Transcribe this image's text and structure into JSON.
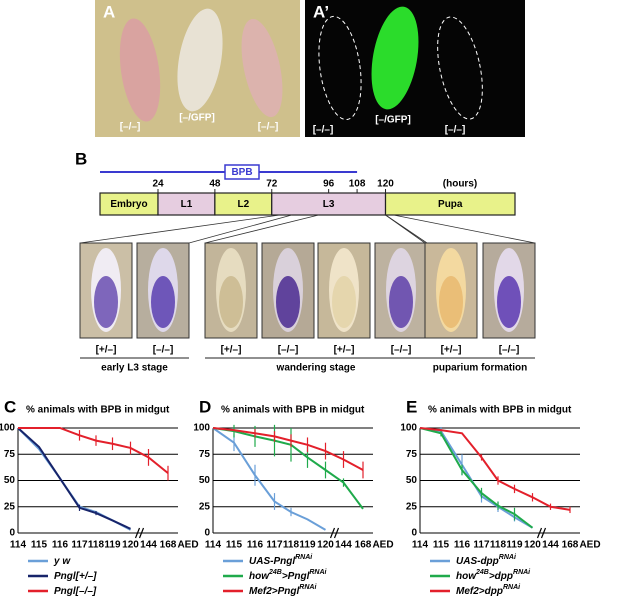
{
  "panel_a": {
    "label": "A",
    "captions": [
      "[–/–]",
      "[–/GFP]",
      "[–/–]"
    ]
  },
  "panel_a2": {
    "label": "A’",
    "captions": [
      "[–/–]",
      "[–/GFP]",
      "[–/–]"
    ]
  },
  "panel_b": {
    "label": "B",
    "bpb": "BPB",
    "hours_label": "(hours)",
    "ticks": [
      24,
      48,
      72,
      96,
      108,
      120
    ],
    "stages": [
      "Embryo",
      "L1",
      "L2",
      "L3",
      "Pupa"
    ],
    "photo_labels": [
      "[+/–]",
      "[–/–]",
      "[+/–]",
      "[–/–]",
      "[+/–]",
      "[–/–]",
      "[+/–]",
      "[–/–]"
    ],
    "groups": [
      "early L3 stage",
      "wandering stage",
      "puparium formation"
    ]
  },
  "charts": [
    {
      "type": "line",
      "label": "C",
      "title": "% animals with BPB in midgut",
      "xlabel": "AED",
      "categories": [
        "114",
        "115",
        "116",
        "117",
        "118",
        "119",
        "120",
        "144",
        "168"
      ],
      "ylim": [
        0,
        100
      ],
      "yticks": [
        0,
        25,
        50,
        75,
        100
      ],
      "grid": true,
      "series": [
        {
          "name": [
            {
              "t": "y w"
            }
          ],
          "color": "#6a9fd8",
          "values": [
            100,
            80,
            52,
            25,
            20,
            12,
            3,
            null,
            null
          ],
          "errors": [
            null,
            null,
            null,
            2,
            null,
            null,
            null,
            null,
            null
          ]
        },
        {
          "name": [
            {
              "t": "Pngl[+/–]"
            }
          ],
          "color": "#17246a",
          "values": [
            100,
            82,
            52,
            24,
            19,
            12,
            4,
            null,
            null
          ],
          "errors": [
            null,
            null,
            null,
            3,
            2,
            null,
            null,
            null,
            null
          ]
        },
        {
          "name": [
            {
              "t": "Pngl[–/–]"
            }
          ],
          "color": "#e3202b",
          "values": [
            100,
            100,
            100,
            93,
            88,
            85,
            81,
            72,
            57
          ],
          "errors": [
            null,
            null,
            null,
            5,
            5,
            6,
            6,
            8,
            7
          ]
        }
      ]
    },
    {
      "type": "line",
      "label": "D",
      "title": "% animals with BPB in midgut",
      "xlabel": "AED",
      "categories": [
        "114",
        "115",
        "116",
        "117",
        "118",
        "119",
        "120",
        "144",
        "168"
      ],
      "ylim": [
        0,
        100
      ],
      "yticks": [
        0,
        25,
        50,
        75,
        100
      ],
      "grid": true,
      "series": [
        {
          "name": [
            {
              "t": "UAS-Pngl"
            },
            {
              "t": "RNAi",
              "sup": true
            }
          ],
          "color": "#6a9fd8",
          "values": [
            100,
            86,
            55,
            30,
            20,
            13,
            3,
            null,
            null
          ],
          "errors": [
            null,
            8,
            10,
            8,
            4,
            null,
            null,
            null,
            null
          ]
        },
        {
          "name": [
            {
              "t": "how"
            },
            {
              "t": "24B",
              "sup": true
            },
            {
              "t": ">Pngl"
            },
            {
              "t": "RNAi",
              "sup": true
            }
          ],
          "color": "#1faa4b",
          "values": [
            100,
            97,
            92,
            88,
            84,
            72,
            60,
            48,
            23
          ],
          "errors": [
            null,
            6,
            10,
            15,
            16,
            10,
            8,
            4,
            null
          ]
        },
        {
          "name": [
            {
              "t": "Mef2>Pngl"
            },
            {
              "t": "RNAi",
              "sup": true
            }
          ],
          "color": "#e3202b",
          "values": [
            100,
            98,
            95,
            92,
            88,
            84,
            78,
            70,
            60
          ],
          "errors": [
            null,
            null,
            4,
            5,
            6,
            7,
            8,
            8,
            8
          ]
        }
      ]
    },
    {
      "type": "line",
      "label": "E",
      "title": "% animals with BPB in midgut",
      "xlabel": "AED",
      "categories": [
        "114",
        "115",
        "116",
        "117",
        "118",
        "119",
        "120",
        "144",
        "168"
      ],
      "ylim": [
        0,
        100
      ],
      "yticks": [
        0,
        25,
        50,
        75,
        100
      ],
      "grid": true,
      "series": [
        {
          "name": [
            {
              "t": "UAS-dpp"
            },
            {
              "t": "RNAi",
              "sup": true
            }
          ],
          "color": "#6a9fd8",
          "values": [
            100,
            97,
            65,
            35,
            25,
            15,
            5,
            null,
            null
          ],
          "errors": [
            null,
            4,
            10,
            6,
            5,
            4,
            null,
            null,
            null
          ]
        },
        {
          "name": [
            {
              "t": "how"
            },
            {
              "t": "24B",
              "sup": true
            },
            {
              "t": ">dpp"
            },
            {
              "t": "RNAi",
              "sup": true
            }
          ],
          "color": "#1faa4b",
          "values": [
            100,
            95,
            60,
            38,
            26,
            18,
            5,
            null,
            null
          ],
          "errors": [
            null,
            3,
            5,
            5,
            4,
            6,
            null,
            null,
            null
          ]
        },
        {
          "name": [
            {
              "t": "Mef2>dpp"
            },
            {
              "t": "RNAi",
              "sup": true
            }
          ],
          "color": "#e3202b",
          "values": [
            100,
            98,
            95,
            72,
            50,
            42,
            34,
            25,
            22
          ],
          "errors": [
            null,
            null,
            null,
            3,
            4,
            4,
            4,
            3,
            3
          ]
        }
      ]
    }
  ]
}
